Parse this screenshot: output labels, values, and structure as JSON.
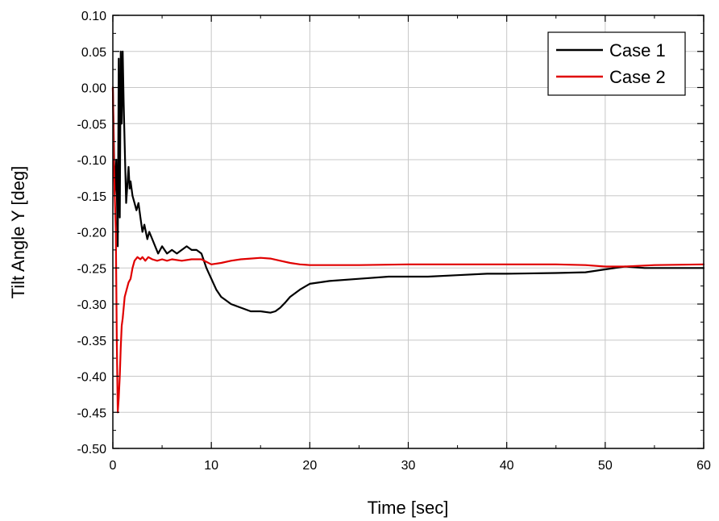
{
  "chart_data": {
    "type": "line",
    "title": "",
    "xlabel": "Time [sec]",
    "ylabel": "Tilt Angle Y [deg]",
    "xlim": [
      0,
      60
    ],
    "ylim": [
      -0.5,
      0.1
    ],
    "xticks": [
      0,
      10,
      20,
      30,
      40,
      50,
      60
    ],
    "yticks": [
      -0.5,
      -0.45,
      -0.4,
      -0.35,
      -0.3,
      -0.25,
      -0.2,
      -0.15,
      -0.1,
      -0.05,
      0.0,
      0.05,
      0.1
    ],
    "xtick_labels": [
      "0",
      "10",
      "20",
      "30",
      "40",
      "50",
      "60"
    ],
    "ytick_labels": [
      "-0.50",
      "-0.45",
      "-0.40",
      "-0.35",
      "-0.30",
      "-0.25",
      "-0.20",
      "-0.15",
      "-0.10",
      "-0.05",
      "0.00",
      "0.05",
      "0.10"
    ],
    "grid": true,
    "legend_position": "top-right",
    "series": [
      {
        "name": "Case 1",
        "color": "#000000",
        "x": [
          0.0,
          0.2,
          0.35,
          0.5,
          0.6,
          0.7,
          0.8,
          0.9,
          1.0,
          1.1,
          1.2,
          1.35,
          1.5,
          1.6,
          1.7,
          1.8,
          2.0,
          2.2,
          2.4,
          2.6,
          2.8,
          3.0,
          3.2,
          3.5,
          3.7,
          4.0,
          4.3,
          4.6,
          5.0,
          5.5,
          6.0,
          6.5,
          7.0,
          7.5,
          8.0,
          8.5,
          9.0,
          9.5,
          10.0,
          10.5,
          11.0,
          11.5,
          12.0,
          13.0,
          14.0,
          15.0,
          16.0,
          16.5,
          17.0,
          17.5,
          18.0,
          18.5,
          19.0,
          20.0,
          22.0,
          25.0,
          28.0,
          30.0,
          32.0,
          35.0,
          38.0,
          40.0,
          45.0,
          48.0,
          50.0,
          52.0,
          54.0,
          56.0,
          58.0,
          60.0
        ],
        "values": [
          0.0,
          -0.15,
          -0.1,
          -0.22,
          0.04,
          -0.18,
          0.05,
          -0.05,
          0.05,
          -0.02,
          -0.08,
          -0.16,
          -0.13,
          -0.11,
          -0.14,
          -0.13,
          -0.15,
          -0.16,
          -0.17,
          -0.16,
          -0.18,
          -0.2,
          -0.19,
          -0.21,
          -0.2,
          -0.21,
          -0.22,
          -0.23,
          -0.22,
          -0.23,
          -0.225,
          -0.23,
          -0.225,
          -0.22,
          -0.225,
          -0.225,
          -0.23,
          -0.25,
          -0.265,
          -0.28,
          -0.29,
          -0.295,
          -0.3,
          -0.305,
          -0.31,
          -0.31,
          -0.312,
          -0.31,
          -0.305,
          -0.298,
          -0.29,
          -0.285,
          -0.28,
          -0.272,
          -0.268,
          -0.265,
          -0.262,
          -0.262,
          -0.262,
          -0.26,
          -0.258,
          -0.258,
          -0.257,
          -0.256,
          -0.252,
          -0.248,
          -0.25,
          -0.25,
          -0.25,
          -0.25
        ]
      },
      {
        "name": "Case 2",
        "color": "#e00000",
        "x": [
          0.0,
          0.1,
          0.2,
          0.3,
          0.4,
          0.5,
          0.6,
          0.7,
          0.8,
          0.9,
          1.0,
          1.2,
          1.4,
          1.6,
          1.8,
          2.0,
          2.2,
          2.5,
          2.8,
          3.0,
          3.3,
          3.6,
          4.0,
          4.5,
          5.0,
          5.5,
          6.0,
          7.0,
          8.0,
          9.0,
          10.0,
          11.0,
          12.0,
          13.0,
          14.0,
          15.0,
          16.0,
          17.0,
          18.0,
          19.0,
          20.0,
          25.0,
          30.0,
          35.0,
          40.0,
          45.0,
          48.0,
          50.0,
          52.0,
          55.0,
          60.0
        ],
        "values": [
          0.0,
          -0.1,
          -0.15,
          -0.2,
          -0.35,
          -0.45,
          -0.43,
          -0.4,
          -0.36,
          -0.33,
          -0.32,
          -0.29,
          -0.28,
          -0.27,
          -0.265,
          -0.25,
          -0.24,
          -0.235,
          -0.238,
          -0.235,
          -0.24,
          -0.235,
          -0.238,
          -0.24,
          -0.238,
          -0.24,
          -0.238,
          -0.24,
          -0.238,
          -0.238,
          -0.245,
          -0.243,
          -0.24,
          -0.238,
          -0.237,
          -0.236,
          -0.237,
          -0.24,
          -0.243,
          -0.245,
          -0.246,
          -0.246,
          -0.245,
          -0.245,
          -0.245,
          -0.245,
          -0.246,
          -0.248,
          -0.248,
          -0.246,
          -0.245
        ]
      }
    ]
  }
}
